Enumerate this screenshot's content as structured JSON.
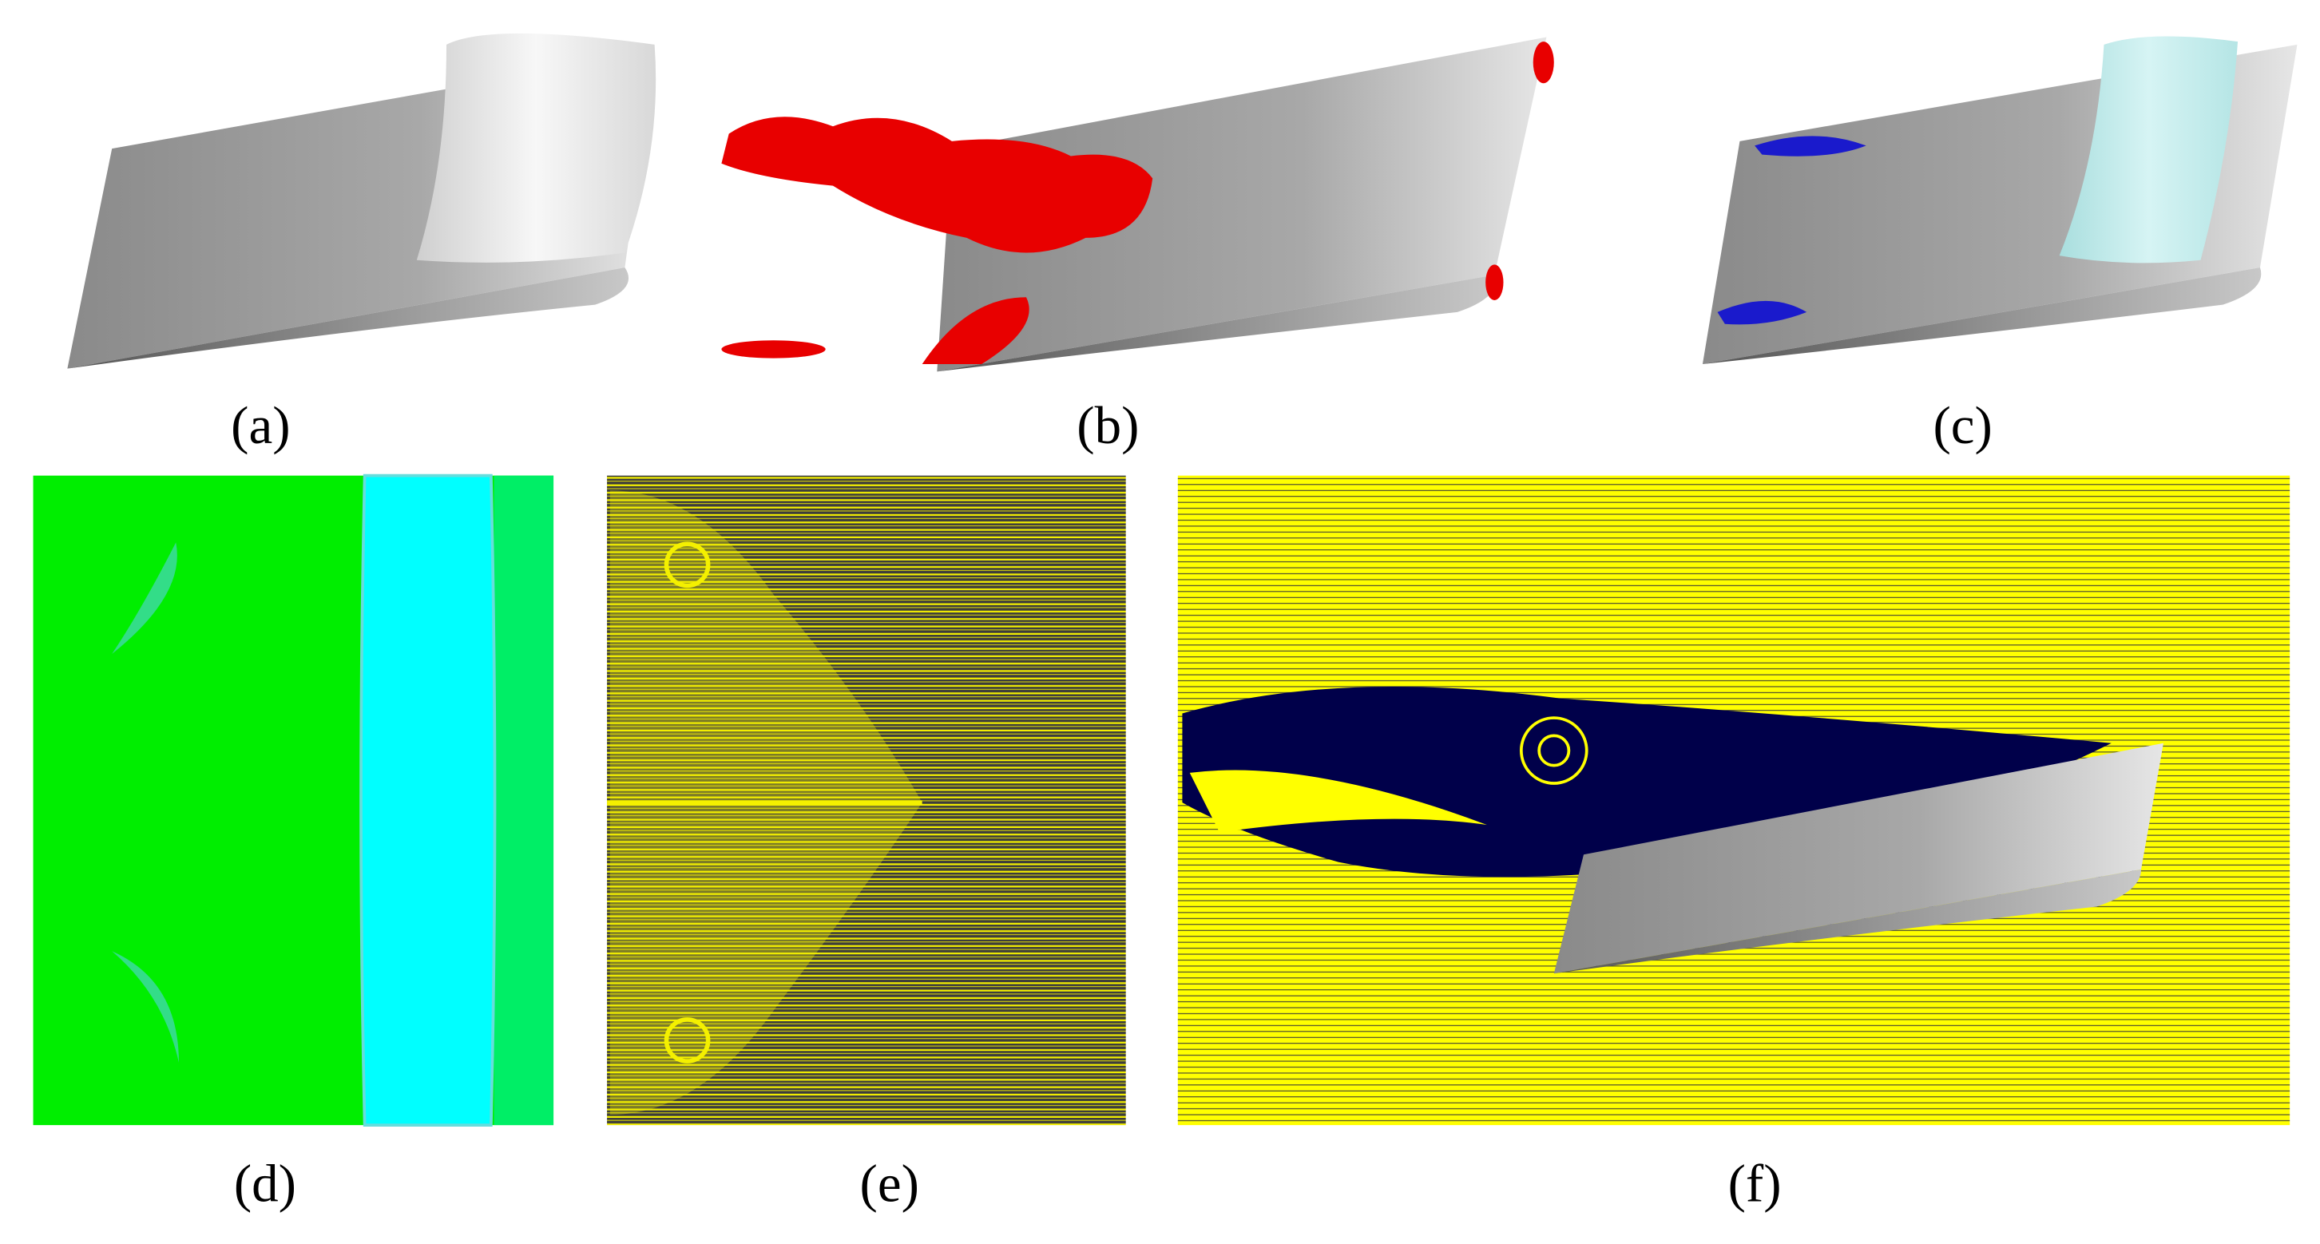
{
  "figure": {
    "panels": [
      {
        "label": "(a)"
      },
      {
        "label": "(b)"
      },
      {
        "label": "(c)"
      },
      {
        "label": "(d)"
      },
      {
        "label": "(e)"
      },
      {
        "label": "(f)"
      }
    ]
  }
}
